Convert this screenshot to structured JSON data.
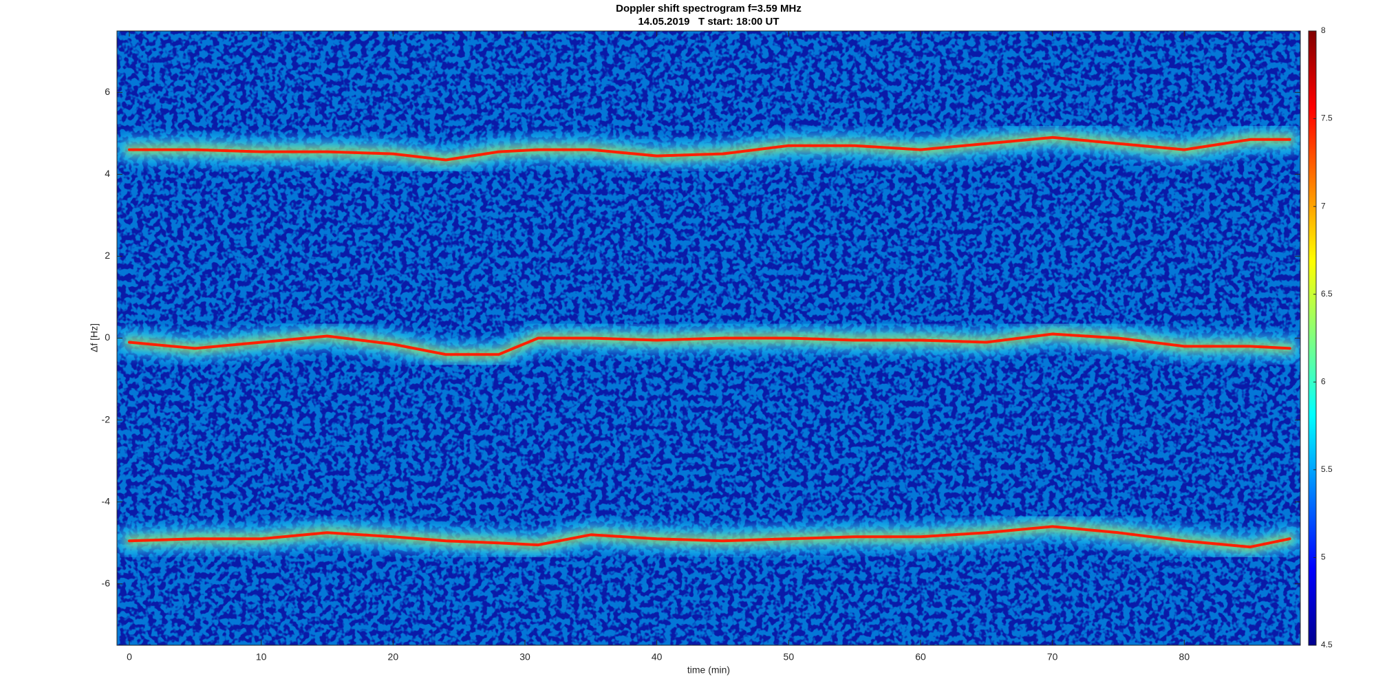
{
  "chart_data": {
    "type": "spectrogram",
    "title": "Doppler shift spectrogram f=3.59 MHz",
    "subtitle": "14.05.2019   T start: 18:00 UT",
    "xlabel": "time (min)",
    "ylabel": "Δf [Hz]",
    "xlim": [
      -0.94,
      88.8
    ],
    "ylim": [
      -7.5,
      7.5
    ],
    "xticks": [
      0,
      10,
      20,
      30,
      40,
      50,
      60,
      70,
      80
    ],
    "yticks": [
      -6,
      -4,
      -2,
      0,
      2,
      4,
      6
    ],
    "clim": [
      4.5,
      8
    ],
    "cticks": [
      4.5,
      5,
      5.5,
      6,
      6.5,
      7,
      7.5,
      8
    ],
    "x": [
      0,
      5,
      10,
      15,
      20,
      24,
      28,
      31,
      35,
      40,
      45,
      50,
      55,
      60,
      65,
      70,
      75,
      80,
      85,
      88
    ],
    "series": [
      {
        "color": "#ff2000",
        "values": [
          4.6,
          4.6,
          4.55,
          4.55,
          4.5,
          4.35,
          4.55,
          4.6,
          4.6,
          4.45,
          4.5,
          4.7,
          4.7,
          4.6,
          4.75,
          4.9,
          4.75,
          4.6,
          4.85,
          4.85
        ]
      },
      {
        "color": "#ff2000",
        "values": [
          -0.1,
          -0.25,
          -0.1,
          0.05,
          -0.15,
          -0.4,
          -0.4,
          0,
          0,
          -0.05,
          0,
          0,
          -0.05,
          -0.05,
          -0.1,
          0.1,
          0,
          -0.2,
          -0.2,
          -0.25
        ]
      },
      {
        "color": "#ff2000",
        "values": [
          -4.95,
          -4.9,
          -4.9,
          -4.75,
          -4.85,
          -4.95,
          -5.0,
          -5.05,
          -4.8,
          -4.9,
          -4.95,
          -4.9,
          -4.85,
          -4.85,
          -4.75,
          -4.6,
          -4.75,
          -4.95,
          -5.1,
          -4.9
        ]
      }
    ]
  }
}
